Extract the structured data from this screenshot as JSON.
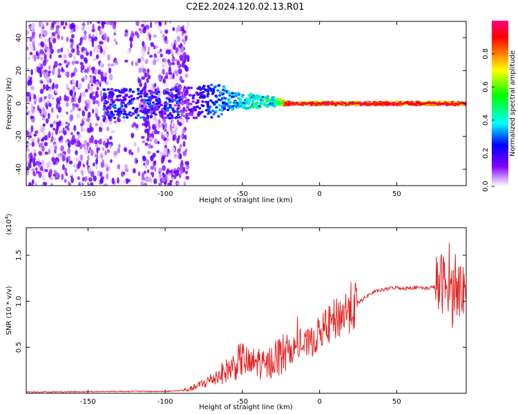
{
  "page_title": "C2E2.2024.120.02.13.R01",
  "chart_data": [
    {
      "type": "heatmap",
      "title": "C2E2.2024.120.02.13.R01",
      "xlabel": "Height of straight line (km)",
      "ylabel": "Frequency (Hz)",
      "xlim": [
        -190,
        95
      ],
      "ylim": [
        -50,
        50
      ],
      "x_ticks": [
        -150,
        -100,
        -50,
        0,
        50
      ],
      "y_ticks": [
        -40,
        -20,
        0,
        20,
        40
      ],
      "grid": false,
      "colorbar": {
        "label": "Normalized spectral amplitude",
        "range": [
          0,
          1
        ],
        "ticks": [
          0.0,
          0.2,
          0.4,
          0.6,
          0.8
        ],
        "colors": [
          "#ffffff",
          "#cc99ff",
          "#8000ff",
          "#0000ff",
          "#00ffff",
          "#00ff00",
          "#ffff00",
          "#ff8000",
          "#ff0000",
          "#ff0080"
        ]
      },
      "description_points": [
        {
          "x": -150,
          "f_center": 0,
          "f_spread": 50,
          "amplitude": 0.05
        },
        {
          "x": -90,
          "f_center": 0,
          "f_spread": 50,
          "amplitude": 0.08
        },
        {
          "x": -60,
          "f_center": 2,
          "f_spread": 6,
          "amplitude": 0.4
        },
        {
          "x": -30,
          "f_center": 1,
          "f_spread": 3,
          "amplitude": 0.5
        },
        {
          "x": -20,
          "f_center": 0,
          "f_spread": 1,
          "amplitude": 0.95
        },
        {
          "x": 0,
          "f_center": 0,
          "f_spread": 1,
          "amplitude": 0.9
        },
        {
          "x": 50,
          "f_center": 0,
          "f_spread": 1,
          "amplitude": 1.0
        },
        {
          "x": 90,
          "f_center": 0,
          "f_spread": 1,
          "amplitude": 0.9
        }
      ]
    },
    {
      "type": "line",
      "xlabel": "Height of straight line (km)",
      "ylabel": "SNR (10 * v/v)",
      "y_multiplier": "(x10",
      "y_multiplier_exp": "4",
      "y_multiplier_close": ")",
      "xlim": [
        -190,
        95
      ],
      "ylim": [
        0,
        1.8
      ],
      "x_ticks": [
        -150,
        -100,
        -50,
        0,
        50
      ],
      "y_ticks": [
        0.5,
        1.0,
        1.5
      ],
      "y_tick_labels": [
        "0.5",
        "1.0",
        "1.5"
      ],
      "grid": false,
      "series": [
        {
          "color": "#e52222",
          "x": [
            -190,
            -170,
            -150,
            -130,
            -120,
            -110,
            -100,
            -90,
            -85,
            -80,
            -75,
            -70,
            -65,
            -60,
            -55,
            -50,
            -45,
            -40,
            -35,
            -30,
            -25,
            -20,
            -15,
            -10,
            -5,
            0,
            5,
            10,
            15,
            20,
            25,
            30,
            35,
            40,
            45,
            50,
            55,
            60,
            65,
            70,
            75,
            78,
            80,
            82,
            84,
            86,
            88,
            90,
            92,
            95
          ],
          "y": [
            0.015,
            0.015,
            0.018,
            0.02,
            0.022,
            0.02,
            0.02,
            0.03,
            0.04,
            0.07,
            0.11,
            0.15,
            0.2,
            0.25,
            0.3,
            0.38,
            0.3,
            0.35,
            0.28,
            0.38,
            0.42,
            0.45,
            0.5,
            0.52,
            0.56,
            0.65,
            0.72,
            0.8,
            0.86,
            0.93,
            0.98,
            1.05,
            1.1,
            1.12,
            1.14,
            1.15,
            1.14,
            1.15,
            1.15,
            1.14,
            1.16,
            1.17,
            1.22,
            1.1,
            1.3,
            1.05,
            1.25,
            1.1,
            1.15,
            1.1
          ]
        }
      ]
    }
  ]
}
